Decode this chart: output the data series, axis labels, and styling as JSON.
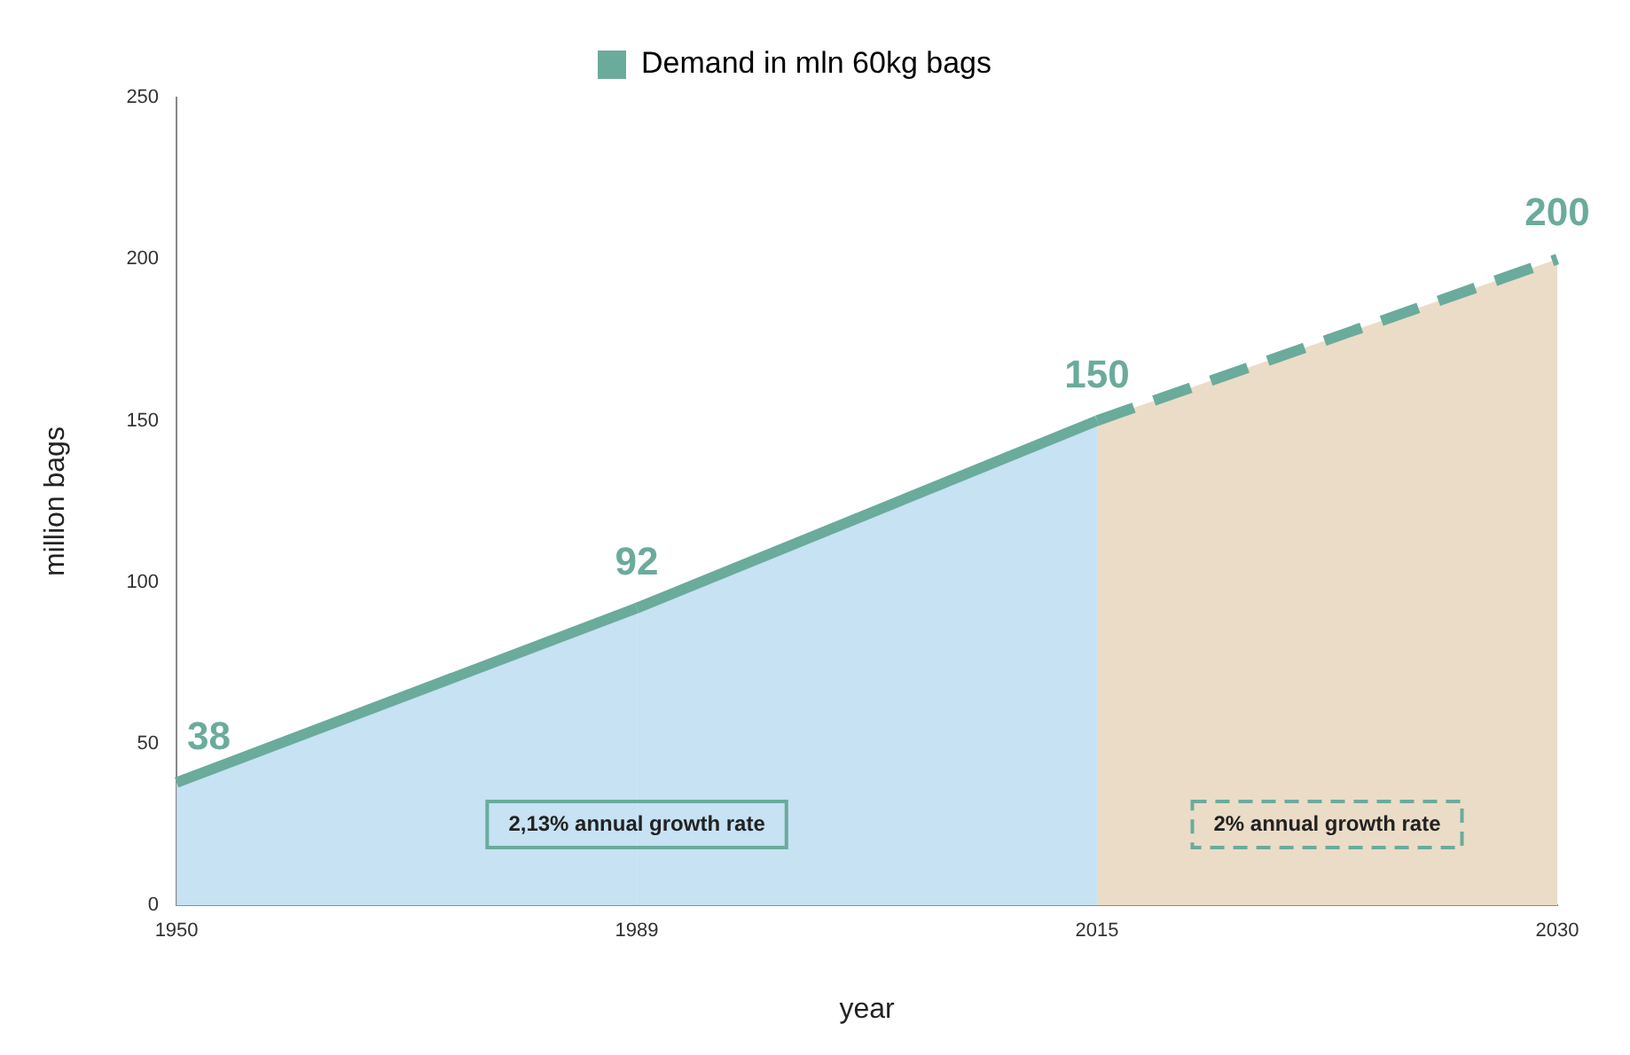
{
  "chart_data": {
    "type": "area",
    "xlabel": "year",
    "ylabel": "million bags",
    "categories": [
      "1950",
      "1989",
      "2015",
      "2030"
    ],
    "series": [
      {
        "name": "Demand in mln 60kg bags",
        "color": "#6aab9c",
        "colors": [
          "#c6e2f3",
          "#c6e2f3",
          "#c6e2f3",
          null
        ],
        "values": [
          38,
          92,
          150,
          null
        ],
        "value_labels": [
          "38",
          "92",
          "150",
          null
        ],
        "line_style": "solid"
      },
      {
        "color": "#6aab9c",
        "colors": [
          null,
          null,
          "#ebdcc7",
          "#ebdcc7"
        ],
        "values": [
          null,
          null,
          150,
          200
        ],
        "value_labels": [
          null,
          null,
          null,
          "200"
        ],
        "line_style": "dashed"
      }
    ],
    "ylim": [
      0,
      250
    ],
    "yticks": [
      0,
      50,
      100,
      150,
      200,
      250
    ],
    "grid": false,
    "legend": "top",
    "annotations": [
      "2,13% annual growth rate",
      "2% annual growth rate"
    ]
  }
}
